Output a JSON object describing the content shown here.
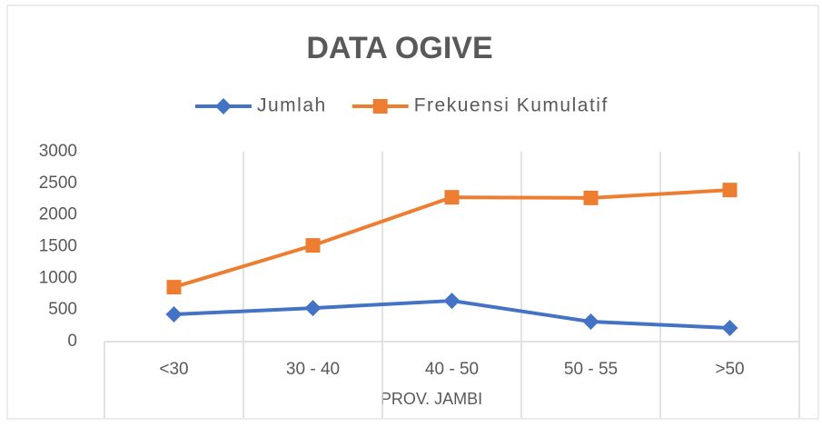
{
  "chart_data": {
    "type": "line",
    "title": "DATA OGIVE",
    "x_label": "PROV. JAMBI",
    "categories": [
      "<30",
      "30 - 40",
      "40 - 50",
      "50 - 55",
      ">50"
    ],
    "series": [
      {
        "name": "Jumlah",
        "color": "#4472c4",
        "values": [
          430,
          530,
          645,
          315,
          215
        ]
      },
      {
        "name": "Frekuensi Kumulatif",
        "color": "#ed7d31",
        "values": [
          860,
          1520,
          2280,
          2270,
          2395
        ]
      }
    ],
    "ylim": [
      0,
      3000
    ],
    "yticks": [
      0,
      500,
      1000,
      1500,
      2000,
      2500,
      3000
    ],
    "grid": "x",
    "legend": "top"
  }
}
